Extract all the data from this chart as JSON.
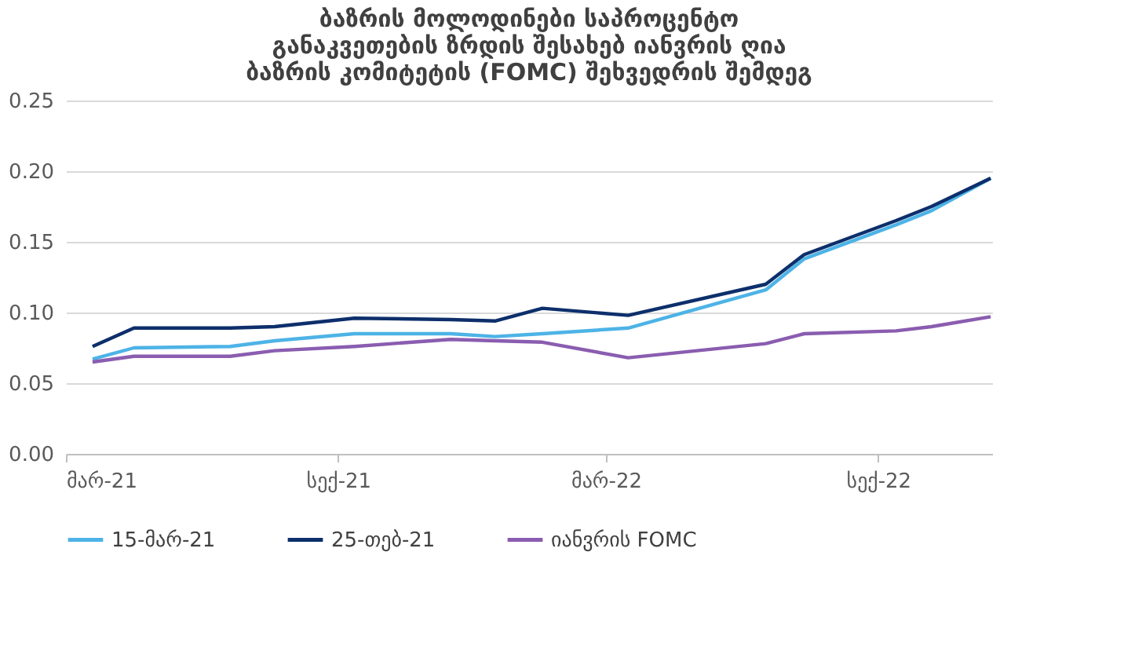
{
  "chart_data": {
    "type": "line",
    "title": "ბაზრის მოლოდინები საპროცენტო განაკვეთების ზრდის შესახებ იანვრის ღია ბაზრის კომიტეტის (FOMC) შეხვედრის შემდეგ",
    "x": [
      "2021-03-19",
      "2021-04-16",
      "2021-06-20",
      "2021-07-20",
      "2021-09-12",
      "2021-11-16",
      "2021-12-16",
      "2022-01-17",
      "2022-03-16",
      "2022-06-17",
      "2022-07-13",
      "2022-09-13",
      "2022-10-07",
      "2022-11-16"
    ],
    "series": [
      {
        "name": "15-მარ-21",
        "color": "#4db3e6",
        "values": [
          0.067,
          0.075,
          0.076,
          0.08,
          0.085,
          0.085,
          0.083,
          0.085,
          0.089,
          0.116,
          0.138,
          0.162,
          0.172,
          0.195
        ]
      },
      {
        "name": "25-თებ-21",
        "color": "#0d2f6b",
        "values": [
          0.076,
          0.089,
          0.089,
          0.09,
          0.096,
          0.095,
          0.094,
          0.103,
          0.098,
          0.12,
          0.141,
          0.165,
          0.175,
          0.195
        ]
      },
      {
        "name": "იანვრის FOMC",
        "color": "#8a5db0",
        "values": [
          0.065,
          0.069,
          0.069,
          0.073,
          0.076,
          0.081,
          0.08,
          0.079,
          0.068,
          0.078,
          0.085,
          0.087,
          0.09,
          0.097
        ]
      }
    ],
    "xlim": [
      "2021-03-01",
      "2022-11-17"
    ],
    "xticks": [
      {
        "value": "2021-03-01",
        "label": "მარ-21"
      },
      {
        "value": "2021-09-01",
        "label": "სექ-21"
      },
      {
        "value": "2022-03-01",
        "label": "მარ-22"
      },
      {
        "value": "2022-09-01",
        "label": "სექ-22"
      }
    ],
    "ylim": [
      0,
      0.25
    ],
    "yticks": [
      {
        "value": 0,
        "label": "0.00"
      },
      {
        "value": 0.05,
        "label": "0.05"
      },
      {
        "value": 0.1,
        "label": "0.10"
      },
      {
        "value": 0.15,
        "label": "0.15"
      },
      {
        "value": 0.2,
        "label": "0.20"
      },
      {
        "value": 0.25,
        "label": "0.25"
      }
    ],
    "grid": "y",
    "legend": "bottom",
    "marker": "none",
    "line_style": "solid"
  }
}
